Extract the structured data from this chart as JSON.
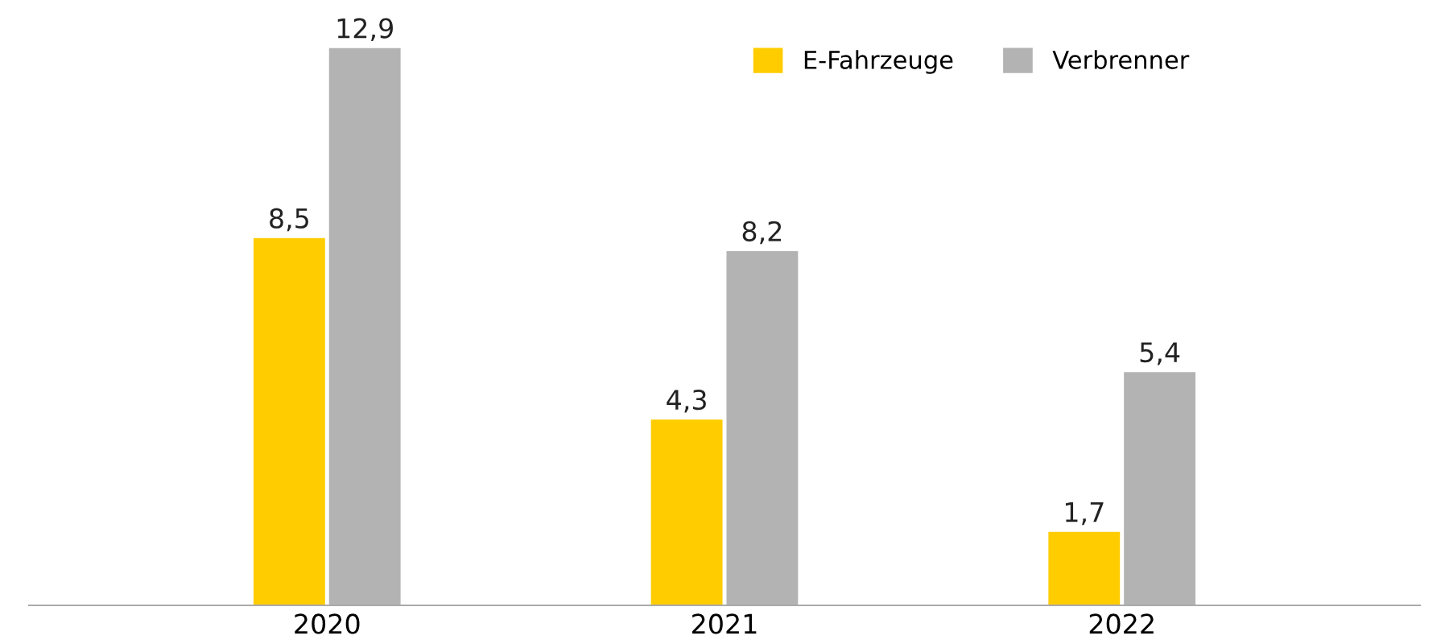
{
  "chart_data": {
    "type": "bar",
    "categories": [
      "2020",
      "2021",
      "2022"
    ],
    "series": [
      {
        "name": "E-Fahrzeuge",
        "color": "#ffcc00",
        "values": [
          8.5,
          4.3,
          1.7
        ],
        "value_labels": [
          "8,5",
          "4,3",
          "1,7"
        ]
      },
      {
        "name": "Verbrenner",
        "color": "#b3b3b3",
        "values": [
          12.9,
          8.2,
          5.4
        ],
        "value_labels": [
          "12,9",
          "8,2",
          "5,4"
        ]
      }
    ],
    "legend": "top right",
    "grid": false
  }
}
